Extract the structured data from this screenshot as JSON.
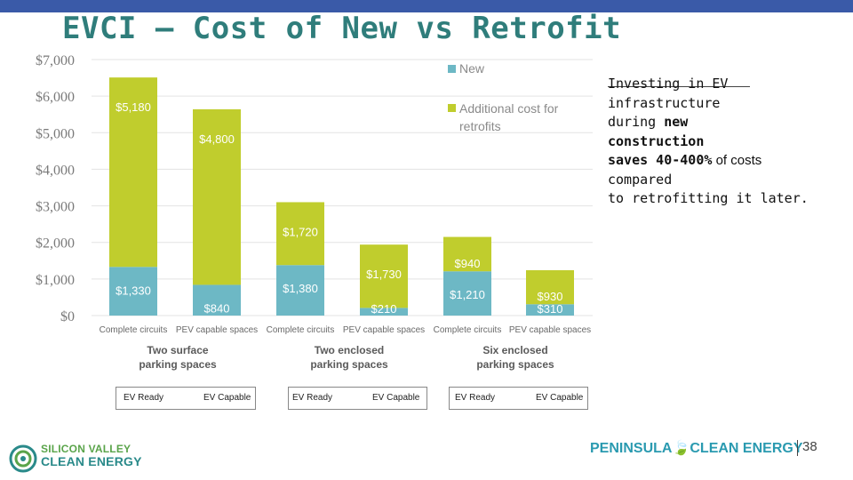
{
  "title": "EVCI – Cost of New vs Retrofit",
  "chart_data": {
    "type": "bar",
    "stacked": true,
    "categories": [
      "Complete circuits",
      "PEV capable spaces",
      "Complete circuits",
      "PEV capable spaces",
      "Complete circuits",
      "PEV capable spaces"
    ],
    "groups": [
      {
        "label_line1": "Two surface",
        "label_line2": "parking spaces"
      },
      {
        "label_line1": "Two enclosed",
        "label_line2": "parking spaces"
      },
      {
        "label_line1": "Six enclosed",
        "label_line2": "parking spaces"
      }
    ],
    "series": [
      {
        "name": "New",
        "color": "#6db8c5",
        "values": [
          1330,
          840,
          1380,
          210,
          1210,
          310
        ],
        "labels": [
          "$1,330",
          "$840",
          "$1,380",
          "$210",
          "$1,210",
          "$310"
        ]
      },
      {
        "name": "Additional cost for retrofits",
        "color": "#c0cd2d",
        "values": [
          5180,
          4800,
          1720,
          1730,
          940,
          930
        ],
        "labels": [
          "$5,180",
          "$4,800",
          "$1,720",
          "$1,730",
          "$940",
          "$930"
        ]
      }
    ],
    "y_ticks": [
      "$0",
      "$1,000",
      "$2,000",
      "$3,000",
      "$4,000",
      "$5,000",
      "$6,000",
      "$7,000"
    ],
    "ylim": [
      0,
      7000
    ],
    "grid": true,
    "legend_position": "top-right"
  },
  "ev_labels": {
    "ready": "EV Ready",
    "capable": "EV Capable"
  },
  "note": {
    "line1": "Investing in EV",
    "line2": "infrastructure",
    "line3": "during ",
    "line3_bold": "new",
    "line4_bold": "construction",
    "line5_bold": "saves 40-400%",
    "line5": " of costs",
    "line6": "compared",
    "line7": "to retrofitting it later."
  },
  "logos": {
    "svce_line1": "SILICON VALLEY",
    "svce_line2": "CLEAN ENERGY",
    "pce_left": "PENINSULA",
    "pce_right": "CLEAN ENERGY"
  },
  "page_number": "38"
}
